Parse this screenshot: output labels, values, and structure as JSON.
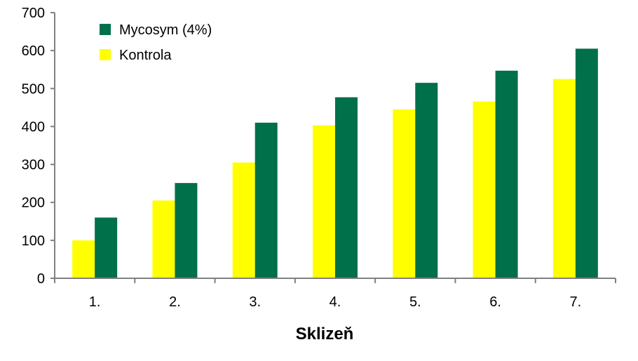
{
  "chart_data": {
    "type": "bar",
    "title": "",
    "xlabel": "Sklizeň",
    "ylabel": "",
    "categories": [
      "1.",
      "2.",
      "3.",
      "4.",
      "5.",
      "6.",
      "7."
    ],
    "series": [
      {
        "name": "Kontrola",
        "color": "#FFFF00",
        "values": [
          100,
          205,
          305,
          403,
          445,
          466,
          525
        ]
      },
      {
        "name": "Mycosym (4%)",
        "color": "#00704A",
        "values": [
          160,
          251,
          410,
          477,
          515,
          547,
          605
        ]
      }
    ],
    "ylim": [
      0,
      700
    ],
    "yticks": [
      "0",
      "100",
      "200",
      "300",
      "400",
      "500",
      "600",
      "700"
    ],
    "grid": false,
    "legend": {
      "position": "top-left",
      "entries": [
        {
          "label": "Mycosym (4%)",
          "color": "#00704A"
        },
        {
          "label": "Kontrola",
          "color": "#FFFF00"
        }
      ]
    }
  }
}
